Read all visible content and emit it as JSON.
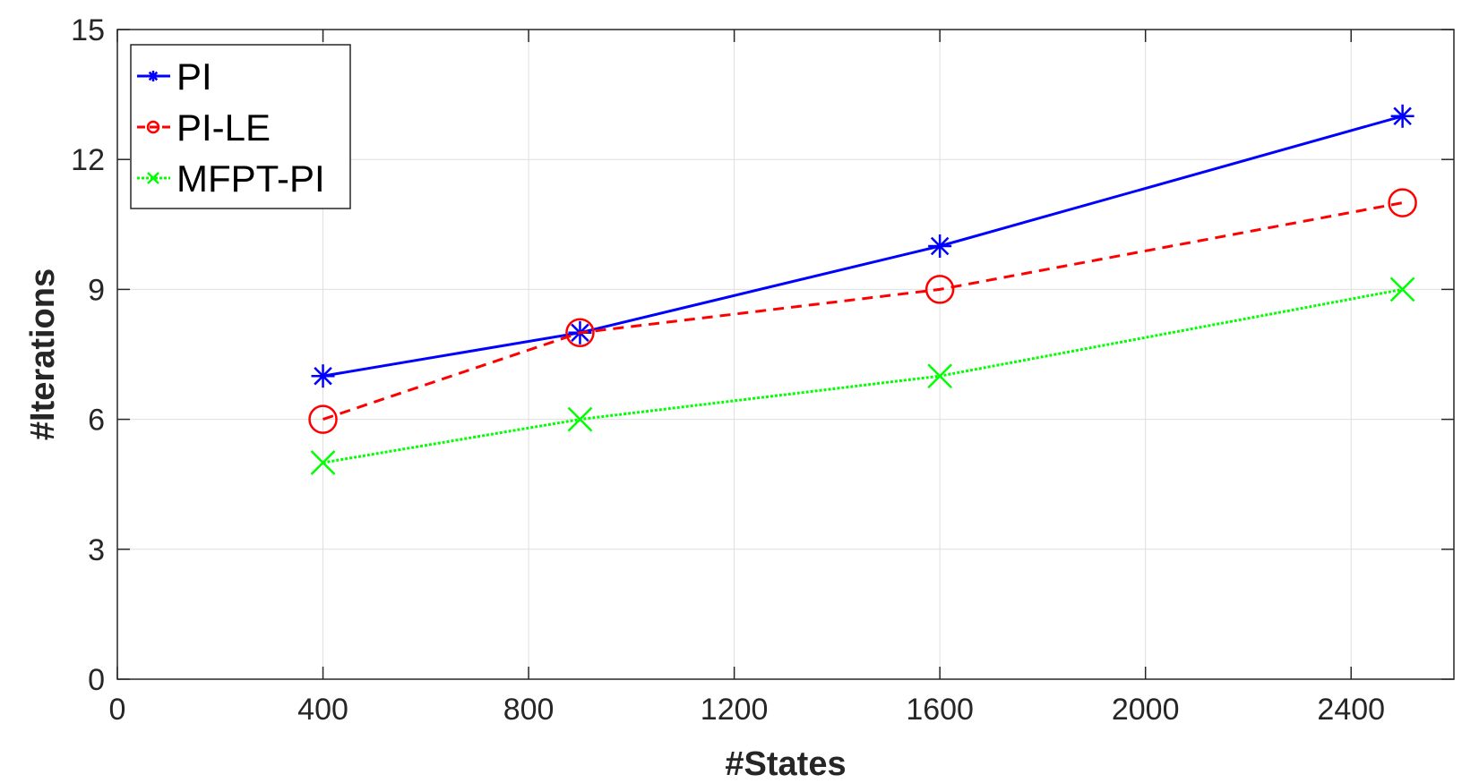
{
  "chart_data": {
    "type": "line",
    "xlabel": "#States",
    "ylabel": "#Iterations",
    "xlim": [
      0,
      2600
    ],
    "ylim": [
      0,
      15
    ],
    "xticks": [
      0,
      400,
      800,
      1200,
      1600,
      2000,
      2400
    ],
    "yticks": [
      0,
      3,
      6,
      9,
      12,
      15
    ],
    "grid": true,
    "legend_position": "top-left",
    "x": [
      400,
      900,
      1600,
      2500
    ],
    "series": [
      {
        "name": "PI",
        "values": [
          7,
          8,
          10,
          13
        ],
        "color": "#0000ff",
        "line_style": "solid",
        "marker": "asterisk"
      },
      {
        "name": "PI-LE",
        "values": [
          6,
          8,
          9,
          11
        ],
        "color": "#ff0000",
        "line_style": "dashed",
        "marker": "circle"
      },
      {
        "name": "MFPT-PI",
        "values": [
          5,
          6,
          7,
          9
        ],
        "color": "#00ff00",
        "line_style": "dotted",
        "marker": "x"
      }
    ]
  }
}
